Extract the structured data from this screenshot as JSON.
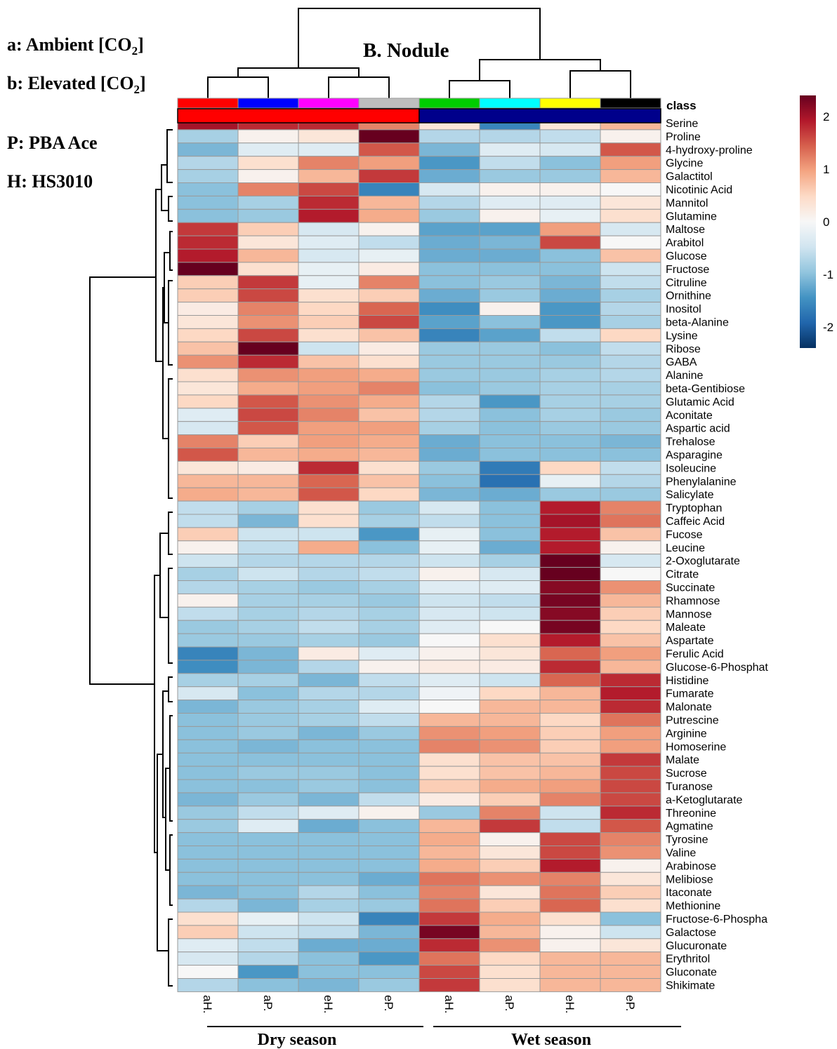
{
  "legend_notes": {
    "a": "a: Ambient [CO",
    "b": "b: Elevated [CO",
    "co2_sub": "2",
    "close": "]",
    "p": "P: PBA Ace",
    "h": "H: HS3010"
  },
  "chart_data": {
    "type": "heatmap",
    "title": "B.  Nodule",
    "class_label": "class",
    "columns": [
      "aH.",
      "aP.",
      "eH.",
      "eP.",
      "aH.",
      "aP.",
      "eH.",
      "eP."
    ],
    "column_class_colors": [
      "#ff0000",
      "#0000ff",
      "#ff00ff",
      "#bebebe",
      "#00cd00",
      "#00ffff",
      "#ffff00",
      "#000000"
    ],
    "season_bar_colors": [
      "#ff0000",
      "#00008b"
    ],
    "season_labels": [
      "Dry season",
      "Wet season"
    ],
    "color_scale": {
      "min": -2.4,
      "max": 2.4,
      "ticks": [
        2,
        1,
        0,
        -1,
        -2
      ],
      "colors": [
        "#053061",
        "#2166ac",
        "#4393c3",
        "#92c5de",
        "#d1e5f0",
        "#f7f7f7",
        "#fddbc7",
        "#f4a582",
        "#d6604d",
        "#b2182b",
        "#67001f"
      ]
    },
    "rows": [
      "Serine",
      "Proline",
      "4-hydroxy-proline",
      "Glycine",
      "Galactitol",
      "Nicotinic Acid",
      "Mannitol",
      "Glutamine",
      "Maltose",
      "Arabitol",
      "Glucose",
      "Fructose",
      "Citruline",
      "Ornithine",
      "Inositol",
      "beta-Alanine",
      "Lysine",
      "Ribose",
      "GABA",
      "Alanine",
      "beta-Gentibiose",
      "Glutamic Acid",
      "Aconitate",
      "Aspartic acid",
      "Trehalose",
      "Asparagine",
      "Isoleucine",
      "Phenylalanine",
      "Salicylate",
      "Tryptophan",
      "Caffeic Acid",
      "Fucose",
      "Leucine",
      "2-Oxoglutarate",
      "Citrate",
      "Succinate",
      "Rhamnose",
      "Mannose",
      "Maleate",
      "Aspartate",
      "Ferulic Acid",
      "Glucose-6-Phosphat",
      "Histidine",
      "Fumarate",
      "Malonate",
      "Putrescine",
      "Arginine",
      "Homoserine",
      "Malate",
      "Sucrose",
      "Turanose",
      "a-Ketoglutarate",
      "Threonine",
      "Agmatine",
      "Tyrosine",
      "Valine",
      "Arabinose",
      "Melibiose",
      "Itaconate",
      "Methionine",
      "Fructose-6-Phospha",
      "Galactose",
      "Glucuronate",
      "Erythritol",
      "Gluconate",
      "Shikimate"
    ],
    "values": [
      [
        2.0,
        1.8,
        1.8,
        1.2,
        0.3,
        -1.6,
        0.3,
        0.8
      ],
      [
        -0.8,
        0.1,
        0.3,
        2.4,
        -0.7,
        -0.7,
        -0.6,
        0.1
      ],
      [
        -1.1,
        -0.3,
        -0.3,
        1.5,
        -1.1,
        -0.3,
        -0.4,
        1.5
      ],
      [
        -0.7,
        0.4,
        1.2,
        1.0,
        -1.4,
        -0.6,
        -1.0,
        1.0
      ],
      [
        -0.8,
        0.1,
        0.8,
        1.7,
        -1.2,
        -0.9,
        -0.9,
        0.8
      ],
      [
        -1.0,
        1.2,
        1.6,
        -1.6,
        -0.4,
        0.1,
        0.1,
        0.0
      ],
      [
        -1.0,
        -0.8,
        1.8,
        0.8,
        -0.7,
        -0.3,
        -0.3,
        0.3
      ],
      [
        -1.0,
        -0.9,
        1.9,
        0.9,
        -0.9,
        0.1,
        -0.2,
        0.4
      ],
      [
        1.7,
        0.6,
        -0.4,
        0.1,
        -1.3,
        -1.3,
        1.0,
        -0.4
      ],
      [
        1.8,
        0.3,
        -0.3,
        -0.6,
        -1.2,
        -1.1,
        1.6,
        0.0
      ],
      [
        1.9,
        0.8,
        -0.4,
        -0.2,
        -1.2,
        -1.2,
        -1.0,
        0.7
      ],
      [
        2.4,
        0.4,
        -0.2,
        0.2,
        -1.0,
        -1.0,
        -1.0,
        -0.5
      ],
      [
        0.6,
        1.7,
        -0.2,
        1.2,
        -1.0,
        -0.9,
        -1.1,
        -0.6
      ],
      [
        0.6,
        1.6,
        0.4,
        0.6,
        -1.2,
        -0.9,
        -1.2,
        -0.8
      ],
      [
        0.2,
        1.2,
        0.5,
        1.4,
        -1.5,
        0.1,
        -1.4,
        -0.7
      ],
      [
        0.3,
        1.1,
        0.6,
        1.6,
        -1.3,
        -1.0,
        -1.4,
        -0.8
      ],
      [
        0.5,
        1.6,
        0.4,
        0.7,
        -1.6,
        -1.3,
        -0.6,
        0.5
      ],
      [
        0.7,
        2.4,
        -0.5,
        0.2,
        -0.9,
        -0.9,
        -1.0,
        -0.6
      ],
      [
        1.1,
        1.8,
        0.7,
        0.4,
        -0.9,
        -0.9,
        -0.9,
        -0.7
      ],
      [
        0.4,
        1.1,
        1.0,
        0.9,
        -0.9,
        -0.9,
        -0.8,
        -0.7
      ],
      [
        0.3,
        0.9,
        1.0,
        1.2,
        -1.0,
        -0.9,
        -0.8,
        -0.8
      ],
      [
        0.5,
        1.5,
        1.1,
        0.9,
        -0.7,
        -1.4,
        -0.8,
        -0.8
      ],
      [
        -0.3,
        1.6,
        1.2,
        0.7,
        -0.7,
        -1.0,
        -0.8,
        -0.9
      ],
      [
        -0.4,
        1.5,
        1.0,
        1.0,
        -0.8,
        -1.0,
        -0.9,
        -0.9
      ],
      [
        1.2,
        0.6,
        1.0,
        0.9,
        -1.2,
        -1.0,
        -1.0,
        -1.1
      ],
      [
        1.5,
        0.8,
        0.9,
        0.8,
        -1.2,
        -1.0,
        -1.0,
        -1.0
      ],
      [
        0.3,
        0.2,
        1.8,
        0.4,
        -0.9,
        -1.7,
        0.5,
        -0.6
      ],
      [
        0.8,
        0.8,
        1.4,
        0.7,
        -1.0,
        -1.8,
        -0.2,
        -0.7
      ],
      [
        0.9,
        0.8,
        1.5,
        0.5,
        -1.1,
        -1.2,
        -0.9,
        -0.9
      ],
      [
        -0.6,
        -0.8,
        0.4,
        -0.9,
        -0.4,
        -1.0,
        1.9,
        1.2
      ],
      [
        -0.6,
        -1.1,
        0.4,
        -0.8,
        -0.6,
        -1.0,
        2.0,
        1.3
      ],
      [
        0.6,
        -0.5,
        -0.5,
        -1.4,
        -0.2,
        -1.0,
        1.9,
        0.7
      ],
      [
        0.1,
        -0.6,
        0.9,
        -1.0,
        -0.2,
        -1.2,
        1.9,
        0.1
      ],
      [
        -0.5,
        -0.7,
        -0.7,
        -0.7,
        -0.5,
        -0.8,
        2.4,
        -0.4
      ],
      [
        -0.8,
        -0.5,
        -0.7,
        -0.6,
        0.1,
        -0.4,
        2.4,
        0.0
      ],
      [
        -0.7,
        -0.8,
        -0.9,
        -0.8,
        -0.3,
        -0.3,
        2.2,
        1.1
      ],
      [
        0.1,
        -0.8,
        -0.8,
        -0.9,
        -0.5,
        -0.6,
        2.3,
        0.8
      ],
      [
        -0.6,
        -0.8,
        -0.7,
        -0.8,
        -0.4,
        -0.5,
        2.2,
        0.6
      ],
      [
        -0.9,
        -0.8,
        -0.6,
        -0.8,
        -0.3,
        0.0,
        2.3,
        0.5
      ],
      [
        -0.9,
        -0.9,
        -0.8,
        -0.9,
        0.0,
        0.4,
        1.9,
        0.7
      ],
      [
        -1.6,
        -1.1,
        0.2,
        -0.3,
        0.1,
        0.3,
        1.4,
        1.0
      ],
      [
        -1.5,
        -1.1,
        -0.7,
        0.1,
        0.2,
        0.2,
        1.8,
        0.8
      ],
      [
        -0.8,
        -0.8,
        -1.1,
        -0.6,
        -0.3,
        -0.5,
        1.4,
        1.8
      ],
      [
        -0.4,
        -1.0,
        -0.7,
        -0.7,
        -0.1,
        0.5,
        0.8,
        1.9
      ],
      [
        -1.1,
        -0.9,
        -0.8,
        -0.3,
        0.0,
        0.8,
        0.8,
        1.8
      ],
      [
        -1.0,
        -0.9,
        -0.8,
        -0.6,
        0.8,
        0.8,
        0.5,
        1.3
      ],
      [
        -1.0,
        -0.9,
        -1.1,
        -0.9,
        1.1,
        1.0,
        0.6,
        1.0
      ],
      [
        -1.0,
        -1.1,
        -1.0,
        -1.0,
        1.2,
        1.1,
        0.6,
        1.0
      ],
      [
        -1.0,
        -1.0,
        -1.0,
        -1.0,
        0.4,
        0.7,
        0.7,
        1.7
      ],
      [
        -1.0,
        -0.9,
        -0.9,
        -1.0,
        0.4,
        0.7,
        0.8,
        1.6
      ],
      [
        -1.0,
        -1.0,
        -0.9,
        -1.0,
        0.6,
        0.9,
        1.0,
        1.6
      ],
      [
        -1.1,
        -0.9,
        -1.1,
        -0.6,
        0.2,
        0.6,
        1.2,
        1.6
      ],
      [
        -0.9,
        -0.6,
        -0.3,
        0.1,
        -0.9,
        1.2,
        -0.5,
        1.8
      ],
      [
        -0.9,
        -0.3,
        -1.2,
        -1.0,
        0.8,
        1.7,
        -0.6,
        1.5
      ],
      [
        -1.0,
        -1.0,
        -1.0,
        -1.0,
        0.9,
        0.1,
        1.6,
        1.2
      ],
      [
        -1.0,
        -1.0,
        -1.0,
        -1.0,
        0.8,
        0.3,
        1.6,
        1.1
      ],
      [
        -1.0,
        -1.0,
        -1.0,
        -1.0,
        0.9,
        0.6,
        1.9,
        0.1
      ],
      [
        -1.0,
        -1.0,
        -1.0,
        -1.2,
        1.3,
        1.1,
        1.2,
        0.3
      ],
      [
        -1.1,
        -1.0,
        -0.7,
        -1.0,
        1.2,
        0.3,
        1.3,
        0.6
      ],
      [
        -0.7,
        -1.1,
        -0.8,
        -0.9,
        1.3,
        0.6,
        1.4,
        0.4
      ],
      [
        0.4,
        -0.2,
        -0.5,
        -1.6,
        1.7,
        0.9,
        0.4,
        -1.0
      ],
      [
        0.6,
        -0.5,
        -0.6,
        -1.1,
        2.3,
        0.8,
        0.1,
        -0.5
      ],
      [
        -0.3,
        -0.6,
        -1.2,
        -1.2,
        1.8,
        1.1,
        0.1,
        0.3
      ],
      [
        -0.4,
        -0.7,
        -1.0,
        -1.4,
        1.3,
        0.5,
        0.8,
        0.8
      ],
      [
        0.0,
        -1.4,
        -1.0,
        -1.0,
        1.6,
        0.4,
        0.8,
        0.8
      ],
      [
        -0.7,
        -1.0,
        -1.1,
        -0.9,
        1.7,
        0.4,
        0.8,
        0.8
      ]
    ]
  }
}
